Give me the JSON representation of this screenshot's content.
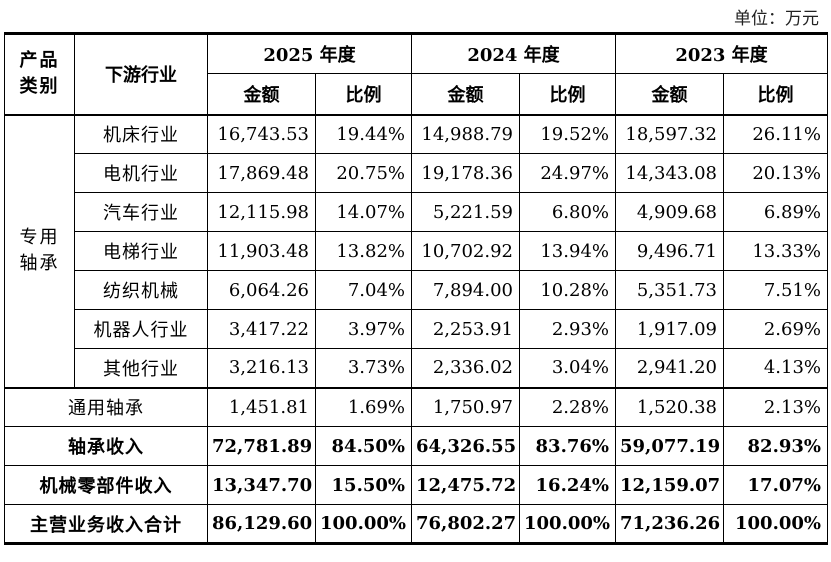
{
  "unit_label": "单位：万元",
  "header": {
    "category_line1": "产品",
    "category_line2": "类别",
    "industry": "下游行业",
    "years": [
      "2025 年度",
      "2024 年度",
      "2023 年度"
    ],
    "amount": "金额",
    "ratio": "比例"
  },
  "group": {
    "line1": "专用",
    "line2": "轴承"
  },
  "rows": [
    {
      "name": "机床行业",
      "v": [
        "16,743.53",
        "19.44%",
        "14,988.79",
        "19.52%",
        "18,597.32",
        "26.11%"
      ]
    },
    {
      "name": "电机行业",
      "v": [
        "17,869.48",
        "20.75%",
        "19,178.36",
        "24.97%",
        "14,343.08",
        "20.13%"
      ]
    },
    {
      "name": "汽车行业",
      "v": [
        "12,115.98",
        "14.07%",
        "5,221.59",
        "6.80%",
        "4,909.68",
        "6.89%"
      ]
    },
    {
      "name": "电梯行业",
      "v": [
        "11,903.48",
        "13.82%",
        "10,702.92",
        "13.94%",
        "9,496.71",
        "13.33%"
      ]
    },
    {
      "name": "纺织机械",
      "v": [
        "6,064.26",
        "7.04%",
        "7,894.00",
        "10.28%",
        "5,351.73",
        "7.51%"
      ]
    },
    {
      "name": "机器人行业",
      "v": [
        "3,417.22",
        "3.97%",
        "2,253.91",
        "2.93%",
        "1,917.09",
        "2.69%"
      ]
    },
    {
      "name": "其他行业",
      "v": [
        "3,216.13",
        "3.73%",
        "2,336.02",
        "3.04%",
        "2,941.20",
        "4.13%"
      ]
    }
  ],
  "general": {
    "name": "通用轴承",
    "v": [
      "1,451.81",
      "1.69%",
      "1,750.97",
      "2.28%",
      "1,520.38",
      "2.13%"
    ]
  },
  "totals": [
    {
      "name": "轴承收入",
      "v": [
        "72,781.89",
        "84.50%",
        "64,326.55",
        "83.76%",
        "59,077.19",
        "82.93%"
      ]
    },
    {
      "name": "机械零部件收入",
      "v": [
        "13,347.70",
        "15.50%",
        "12,475.72",
        "16.24%",
        "12,159.07",
        "17.07%"
      ]
    },
    {
      "name": "主营业务收入合计",
      "v": [
        "86,129.60",
        "100.00%",
        "76,802.27",
        "100.00%",
        "71,236.26",
        "100.00%"
      ]
    }
  ]
}
